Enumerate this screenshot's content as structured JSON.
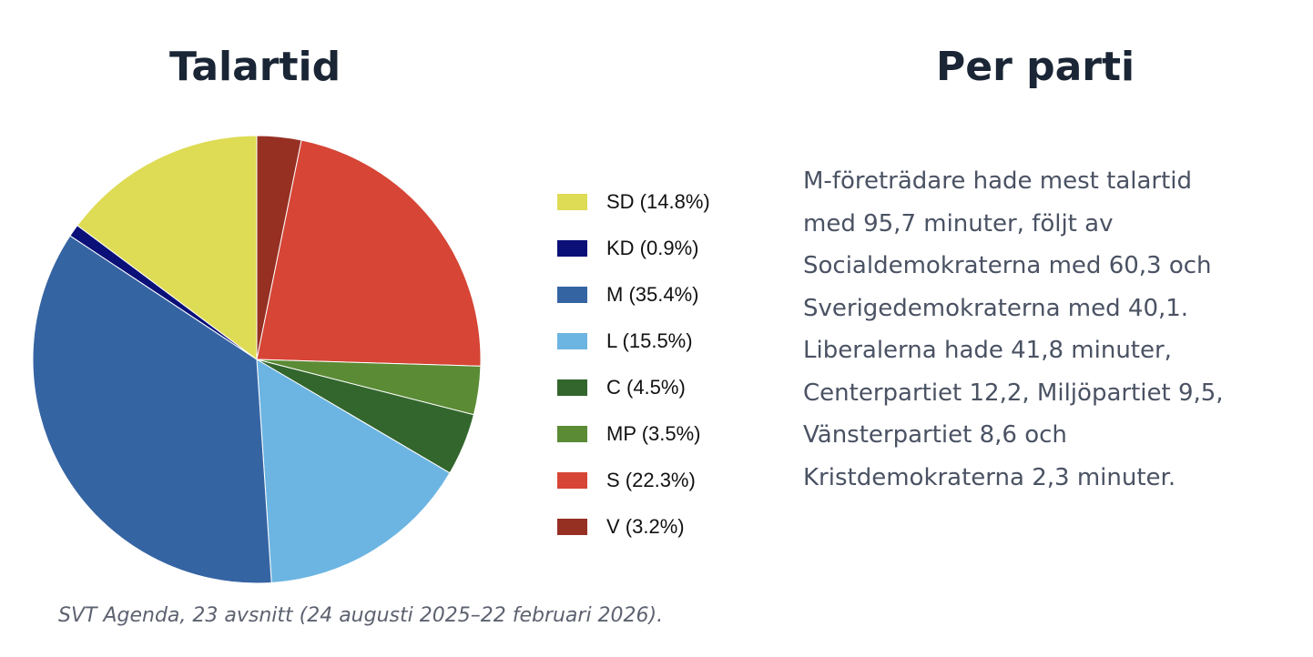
{
  "left_title": "Talartid",
  "right_title": "Per parti",
  "description_lines": [
    "M-företrädare hade mest talartid",
    "med 95,7 minuter, följt av",
    "Socialdemokraterna med 60,3 och",
    "Sverigedemokraterna med 40,1.",
    "Liberalerna hade 41,8 minuter,",
    "Centerpartiet 12,2, Miljöpartiet 9,5,",
    "Vänsterpartiet 8,6 och",
    "Kristdemokraterna 2,3 minuter."
  ],
  "source": "SVT Agenda, 23 avsnitt (24 augusti 2025–22 februari 2026).",
  "chart_data": {
    "type": "pie",
    "legend_position": "right",
    "slices": [
      {
        "party": "V",
        "value": 3.2,
        "legend": "V (3.2%)",
        "color": "#963023"
      },
      {
        "party": "S",
        "value": 22.3,
        "legend": "S (22.3%)",
        "color": "#d64535"
      },
      {
        "party": "MP",
        "value": 3.5,
        "legend": "MP (3.5%)",
        "color": "#5b8b35"
      },
      {
        "party": "C",
        "value": 4.5,
        "legend": "C (4.5%)",
        "color": "#33662d"
      },
      {
        "party": "L",
        "value": 15.5,
        "legend": "L (15.5%)",
        "color": "#6cb5e2"
      },
      {
        "party": "M",
        "value": 35.4,
        "legend": "M (35.4%)",
        "color": "#3564a3"
      },
      {
        "party": "KD",
        "value": 0.9,
        "legend": "KD (0.9%)",
        "color": "#0a1078"
      },
      {
        "party": "SD",
        "value": 14.8,
        "legend": "SD (14.8%)",
        "color": "#dedb55"
      }
    ],
    "legend_order": [
      "SD",
      "KD",
      "M",
      "L",
      "C",
      "MP",
      "S",
      "V"
    ]
  }
}
